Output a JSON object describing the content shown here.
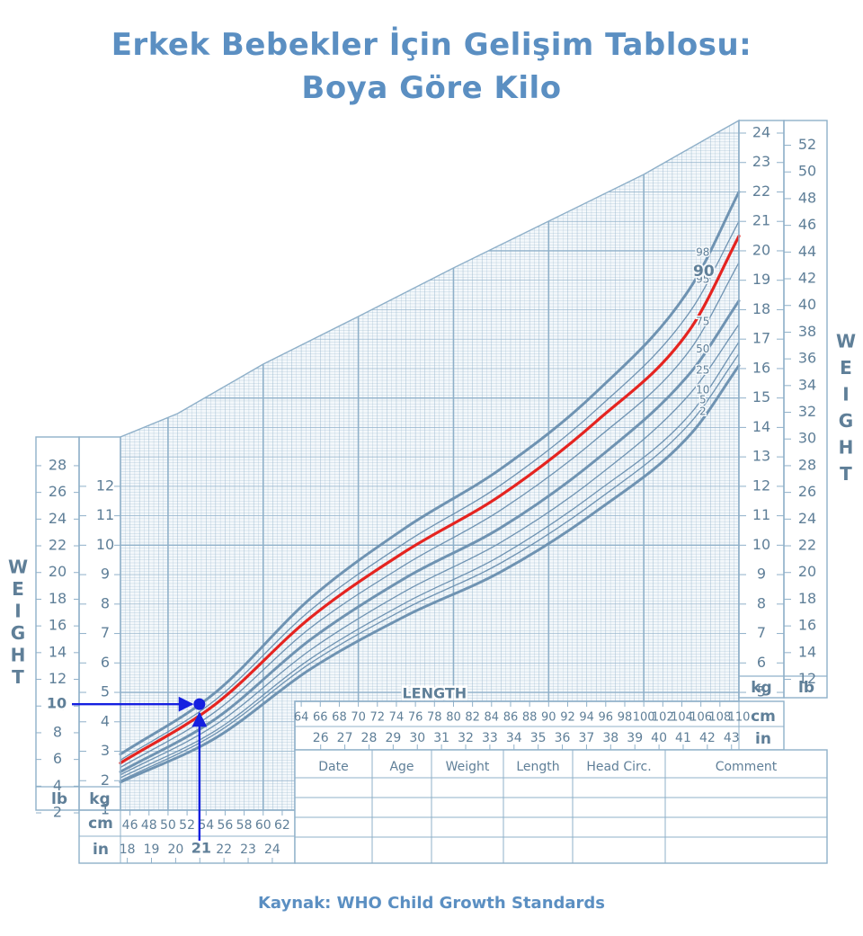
{
  "page": {
    "title_line1": "Erkek Bebekler İçin Gelişim Tablosu:",
    "title_line2": "Boya Göre Kilo",
    "source": "Kaynak: WHO Child Growth Standards"
  },
  "colors": {
    "grid": "#8fb0c9",
    "axis_text": "#5f7f98",
    "title": "#5b8fc2",
    "highlight": "#e52420",
    "marker": "#1520e0"
  },
  "chart_data": {
    "type": "line",
    "x_unit_label": "cm",
    "x_unit_label_alt": "in",
    "y_unit_label": "kg",
    "y_unit_label_alt": "lb",
    "axis_title_y": "WEIGHT",
    "axis_title_x": "LENGTH",
    "xlim": [
      45,
      110
    ],
    "ylim": [
      1,
      24
    ],
    "x_ticks_cm_low": [
      46,
      48,
      50,
      52,
      54,
      56,
      58,
      60,
      62
    ],
    "x_ticks_in_low": [
      18,
      19,
      20,
      21,
      22,
      23,
      24
    ],
    "x_ticks_cm_high": [
      64,
      66,
      68,
      70,
      72,
      74,
      76,
      78,
      80,
      82,
      84,
      86,
      88,
      90,
      92,
      94,
      96,
      98,
      100,
      102,
      104,
      106,
      108,
      110
    ],
    "x_ticks_in_high": [
      26,
      27,
      28,
      29,
      30,
      31,
      32,
      33,
      34,
      35,
      36,
      37,
      38,
      39,
      40,
      41,
      42,
      43
    ],
    "y_ticks_kg_left": [
      1,
      2,
      3,
      4,
      5,
      6,
      7,
      8,
      9,
      10,
      11,
      12
    ],
    "y_ticks_lb_left": [
      2,
      4,
      6,
      8,
      10,
      12,
      14,
      16,
      18,
      20,
      22,
      24,
      26,
      28
    ],
    "y_ticks_kg_right": [
      5,
      6,
      7,
      8,
      9,
      10,
      11,
      12,
      13,
      14,
      15,
      16,
      17,
      18,
      19,
      20,
      21,
      22,
      23,
      24
    ],
    "y_ticks_lb_right": [
      12,
      14,
      16,
      18,
      20,
      22,
      24,
      26,
      28,
      30,
      32,
      34,
      36,
      38,
      40,
      42,
      44,
      46,
      48,
      50,
      52
    ],
    "x": [
      45,
      55,
      65,
      75,
      85,
      95,
      105,
      110
    ],
    "series": [
      {
        "name": "98",
        "values": [
          2.9,
          5.0,
          8.2,
          10.6,
          12.6,
          15.2,
          18.8,
          22.0
        ],
        "bold": true
      },
      {
        "name": "95",
        "values": [
          2.7,
          4.75,
          7.8,
          10.1,
          12.05,
          14.6,
          18.0,
          21.0
        ],
        "bold": false
      },
      {
        "name": "90",
        "values": [
          2.6,
          4.6,
          7.55,
          9.8,
          11.7,
          14.2,
          17.4,
          20.5
        ],
        "bold": false,
        "highlight": true
      },
      {
        "name": "75",
        "values": [
          2.45,
          4.35,
          7.2,
          9.35,
          11.2,
          13.6,
          16.7,
          19.6
        ],
        "bold": false
      },
      {
        "name": "50",
        "values": [
          2.3,
          4.1,
          6.8,
          8.9,
          10.6,
          12.9,
          15.9,
          18.3
        ],
        "bold": true
      },
      {
        "name": "25",
        "values": [
          2.2,
          3.9,
          6.45,
          8.45,
          10.1,
          12.3,
          15.2,
          17.5
        ],
        "bold": false
      },
      {
        "name": "10",
        "values": [
          2.1,
          3.7,
          6.15,
          8.05,
          9.65,
          11.8,
          14.5,
          16.9
        ],
        "bold": false
      },
      {
        "name": "5",
        "values": [
          2.0,
          3.6,
          6.0,
          7.85,
          9.4,
          11.5,
          14.2,
          16.5
        ],
        "bold": false
      },
      {
        "name": "2",
        "values": [
          1.95,
          3.45,
          5.8,
          7.6,
          9.1,
          11.15,
          13.8,
          16.1
        ],
        "bold": true
      }
    ],
    "highlight_label": "90",
    "example_point": {
      "x_cm": 53.3,
      "y_kg": 4.6,
      "x_label": "21",
      "y_label": "10"
    }
  },
  "record_table": {
    "headers": [
      "Date",
      "Age",
      "Weight",
      "Length",
      "Head  Circ.",
      "Comment"
    ],
    "rows": 4
  }
}
